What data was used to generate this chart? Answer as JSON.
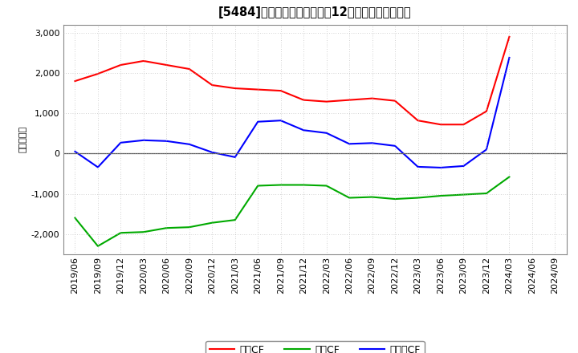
{
  "title": "[5484]　キャッシュフローの12か月移動合計の推移",
  "ylabel": "（百万円）",
  "background_color": "#ffffff",
  "plot_background_color": "#ffffff",
  "grid_color": "#aaaaaa",
  "ylim": [
    -2500,
    3200
  ],
  "yticks": [
    -2000,
    -1000,
    0,
    1000,
    2000,
    3000
  ],
  "dates": [
    "2019/06",
    "2019/09",
    "2019/12",
    "2020/03",
    "2020/06",
    "2020/09",
    "2020/12",
    "2021/03",
    "2021/06",
    "2021/09",
    "2021/12",
    "2022/03",
    "2022/06",
    "2022/09",
    "2022/12",
    "2023/03",
    "2023/06",
    "2023/09",
    "2023/12",
    "2024/03",
    "2024/06",
    "2024/09"
  ],
  "operating_cf": [
    1800,
    1980,
    2200,
    2300,
    2200,
    2100,
    1700,
    1620,
    1590,
    1560,
    1330,
    1290,
    1330,
    1370,
    1310,
    820,
    720,
    720,
    1050,
    2900,
    null,
    null
  ],
  "investing_cf": [
    -1600,
    -2300,
    -1970,
    -1950,
    -1850,
    -1830,
    -1720,
    -1650,
    -800,
    -780,
    -780,
    -800,
    -1100,
    -1080,
    -1130,
    -1100,
    -1050,
    -1020,
    -990,
    -580,
    null,
    null
  ],
  "free_cf": [
    50,
    -340,
    270,
    330,
    310,
    230,
    30,
    -90,
    790,
    820,
    580,
    510,
    240,
    260,
    190,
    -330,
    -350,
    -310,
    100,
    2380,
    null,
    null
  ],
  "op_color": "#ff0000",
  "inv_color": "#00aa00",
  "free_color": "#0000ff",
  "legend_labels": [
    "営業CF",
    "投資CF",
    "フリーCF"
  ]
}
